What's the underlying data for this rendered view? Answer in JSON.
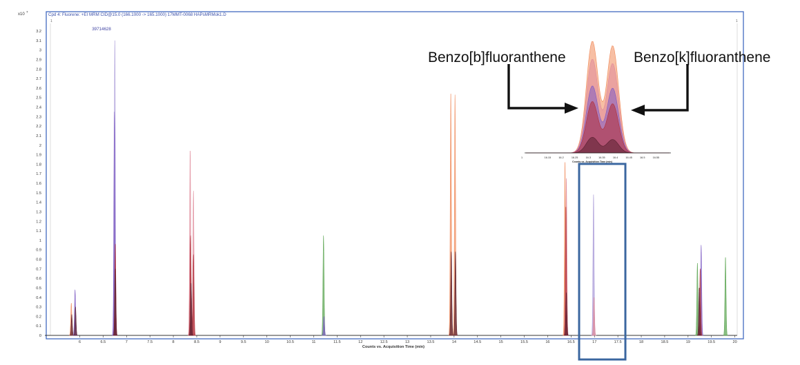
{
  "header": {
    "title": "Cpd 4: Fluorene: +EI MRM CID@15.0 (166.1000 -> 165.1000) 17MMT-0068 HAPsMRMok1.D",
    "exponent_label": "x10",
    "exponent_power": "7",
    "left_marker": "1",
    "right_marker": "1"
  },
  "annotations": {
    "apex_value": "39714628",
    "label_b": "Benzo[b]fluoranthene",
    "label_k": "Benzo[k]fluoranthene"
  },
  "colors": {
    "frame": "#4169c0",
    "highlight_box": "#3b67a0",
    "orange": "#f08a5a",
    "purple": "#7d5bc4",
    "red": "#b0303a",
    "dark": "#5a2030",
    "green": "#5aa550",
    "lavender": "#a99ad8",
    "pink": "#e08a9a"
  },
  "chart_data": [
    {
      "type": "area",
      "title": "Cpd 4: Fluorene: +EI MRM CID@15.0 (166.1000 -> 165.1000) 17MMT-0068 HAPsMRMok1.D",
      "xlabel": "Counts vs. Acquisition Time (min)",
      "ylabel": "",
      "y_multiplier": "x10^7",
      "xlim": [
        5.55,
        20.05
      ],
      "ylim": [
        0,
        3.28
      ],
      "x_ticks": [
        "6",
        "6.5",
        "7",
        "7.5",
        "8",
        "8.5",
        "9",
        "9.5",
        "10",
        "10.5",
        "11",
        "11.5",
        "12",
        "12.5",
        "13",
        "13.5",
        "14",
        "14.5",
        "15",
        "15.5",
        "16",
        "16.5",
        "17",
        "17.5",
        "18",
        "18.5",
        "19",
        "19.5",
        "20"
      ],
      "y_ticks": [
        "0",
        "0.1",
        "0.2",
        "0.3",
        "0.4",
        "0.5",
        "0.6",
        "0.7",
        "0.8",
        "0.9",
        "1",
        "1.1",
        "1.2",
        "1.3",
        "1.4",
        "1.5",
        "1.6",
        "1.7",
        "1.8",
        "1.9",
        "2",
        "2.1",
        "2.2",
        "2.3",
        "2.4",
        "2.5",
        "2.6",
        "2.7",
        "2.8",
        "2.9",
        "3",
        "3.1",
        "3.2"
      ],
      "grid": false,
      "peaks": [
        {
          "rt": 5.82,
          "height": 0.34,
          "color": "orange"
        },
        {
          "rt": 5.83,
          "height": 0.22,
          "color": "dark"
        },
        {
          "rt": 5.9,
          "height": 0.48,
          "color": "purple"
        },
        {
          "rt": 5.91,
          "height": 0.3,
          "color": "dark"
        },
        {
          "rt": 6.75,
          "height": 3.1,
          "color": "lavender"
        },
        {
          "rt": 6.74,
          "height": 2.35,
          "color": "purple"
        },
        {
          "rt": 6.76,
          "height": 0.96,
          "color": "red"
        },
        {
          "rt": 6.76,
          "height": 0.7,
          "color": "dark"
        },
        {
          "rt": 8.36,
          "height": 1.94,
          "color": "pink"
        },
        {
          "rt": 8.43,
          "height": 1.52,
          "color": "pink"
        },
        {
          "rt": 8.37,
          "height": 1.05,
          "color": "red"
        },
        {
          "rt": 8.43,
          "height": 0.85,
          "color": "red"
        },
        {
          "rt": 8.38,
          "height": 0.55,
          "color": "dark"
        },
        {
          "rt": 11.21,
          "height": 1.05,
          "color": "green"
        },
        {
          "rt": 11.22,
          "height": 0.2,
          "color": "purple"
        },
        {
          "rt": 13.93,
          "height": 2.54,
          "color": "orange"
        },
        {
          "rt": 14.02,
          "height": 2.53,
          "color": "orange"
        },
        {
          "rt": 13.94,
          "height": 0.88,
          "color": "dark"
        },
        {
          "rt": 14.03,
          "height": 0.88,
          "color": "dark"
        },
        {
          "rt": 16.37,
          "height": 1.82,
          "color": "orange"
        },
        {
          "rt": 16.4,
          "height": 1.65,
          "color": "pink"
        },
        {
          "rt": 16.39,
          "height": 1.35,
          "color": "red"
        },
        {
          "rt": 16.4,
          "height": 0.45,
          "color": "dark"
        },
        {
          "rt": 16.98,
          "height": 1.48,
          "color": "lavender"
        },
        {
          "rt": 16.99,
          "height": 0.4,
          "color": "pink"
        },
        {
          "rt": 19.2,
          "height": 0.76,
          "color": "green"
        },
        {
          "rt": 19.28,
          "height": 0.95,
          "color": "purple"
        },
        {
          "rt": 19.26,
          "height": 0.7,
          "color": "red"
        },
        {
          "rt": 19.24,
          "height": 0.5,
          "color": "dark"
        },
        {
          "rt": 19.8,
          "height": 0.82,
          "color": "green"
        }
      ]
    },
    {
      "type": "area",
      "title": "",
      "xlabel": "Counts vs. Acquisition Time (min)",
      "xlim": [
        16.07,
        16.6
      ],
      "x_ticks": [
        "1",
        "16.15",
        "16.2",
        "16.25",
        "16.3",
        "16.35",
        "16.4",
        "16.45",
        "16.5",
        "16.55"
      ],
      "ylim": [
        0,
        1
      ],
      "series": [
        {
          "color": "orange",
          "peaks": [
            {
              "rt": 16.315,
              "height": 1.0
            },
            {
              "rt": 16.39,
              "height": 0.96
            }
          ]
        },
        {
          "color": "pink",
          "peaks": [
            {
              "rt": 16.315,
              "height": 0.84
            },
            {
              "rt": 16.39,
              "height": 0.8
            }
          ]
        },
        {
          "color": "purple",
          "peaks": [
            {
              "rt": 16.315,
              "height": 0.6
            },
            {
              "rt": 16.39,
              "height": 0.58
            }
          ]
        },
        {
          "color": "red",
          "peaks": [
            {
              "rt": 16.315,
              "height": 0.46
            },
            {
              "rt": 16.39,
              "height": 0.44
            }
          ]
        },
        {
          "color": "dark",
          "peaks": [
            {
              "rt": 16.315,
              "height": 0.14
            },
            {
              "rt": 16.39,
              "height": 0.12
            }
          ]
        }
      ]
    }
  ]
}
